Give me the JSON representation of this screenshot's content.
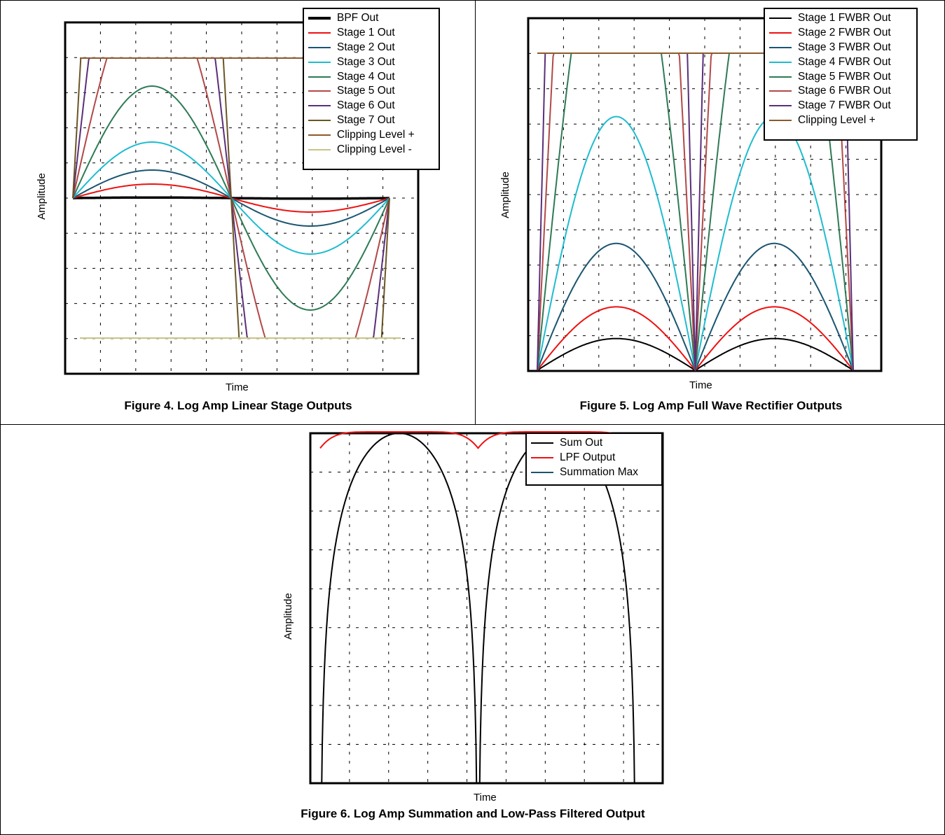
{
  "chart_data": [
    {
      "type": "line",
      "title": "",
      "caption": "Figure 4. Log Amp Linear Stage Outputs",
      "xlabel": "Time",
      "ylabel": "Amplitude",
      "legend_position": "top-right",
      "grid": true,
      "x_divisions": 10,
      "y_divisions": 10,
      "clip_level": 4,
      "series": [
        {
          "name": "BPF Out",
          "color": "#000000",
          "gain": 0.016,
          "width": 3.5
        },
        {
          "name": "Stage 1 Out",
          "color": "#ee1111",
          "gain": 0.4,
          "width": 2
        },
        {
          "name": "Stage 2 Out",
          "color": "#1a5570",
          "gain": 0.8,
          "width": 2
        },
        {
          "name": "Stage 3 Out",
          "color": "#1fbcd0",
          "gain": 1.6,
          "width": 2
        },
        {
          "name": "Stage 4 Out",
          "color": "#2e7a55",
          "gain": 3.2,
          "width": 2
        },
        {
          "name": "Stage 5 Out",
          "color": "#b24848",
          "gain": 6.4,
          "width": 2
        },
        {
          "name": "Stage 6 Out",
          "color": "#5a2f7a",
          "gain": 12.8,
          "width": 2
        },
        {
          "name": "Stage 7 Out",
          "color": "#6b5524",
          "gain": 25.6,
          "width": 2
        },
        {
          "name": "Clipping Level +",
          "color": "#8b5a2b",
          "value": 4,
          "width": 2
        },
        {
          "name": "Clipping Level -",
          "color": "#c8c486",
          "value": -4,
          "width": 2
        }
      ]
    },
    {
      "type": "line",
      "title": "",
      "caption": "Figure 5. Log Amp Full Wave Rectifier Outputs",
      "xlabel": "Time",
      "ylabel": "Amplitude",
      "legend_position": "top-right",
      "grid": true,
      "x_divisions": 10,
      "y_divisions": 10,
      "clip_level": 10,
      "series": [
        {
          "name": "Stage 1 FWBR Out",
          "color": "#000000",
          "gain": 1,
          "width": 2
        },
        {
          "name": "Stage 2 FWBR Out",
          "color": "#ee1111",
          "gain": 2,
          "width": 2
        },
        {
          "name": "Stage 3 FWBR Out",
          "color": "#1a5570",
          "gain": 4,
          "width": 2
        },
        {
          "name": "Stage 4 FWBR Out",
          "color": "#1fbcd0",
          "gain": 8,
          "width": 2
        },
        {
          "name": "Stage 5 FWBR Out",
          "color": "#2e7a55",
          "gain": 16,
          "width": 2
        },
        {
          "name": "Stage 6 FWBR Out",
          "color": "#b24848",
          "gain": 32,
          "width": 2
        },
        {
          "name": "Stage 7 FWBR Out",
          "color": "#5a2f7a",
          "gain": 64,
          "width": 2
        },
        {
          "name": "Clipping Level +",
          "color": "#8b5a2b",
          "value": 10,
          "width": 2
        }
      ]
    },
    {
      "type": "line",
      "title": "",
      "caption": "Figure 6. Log Amp Summation and Low-Pass Filtered Output",
      "xlabel": "Time",
      "ylabel": "Amplitude",
      "legend_position": "top-right",
      "grid": true,
      "x_divisions": 9,
      "y_divisions": 9,
      "series": [
        {
          "name": "Sum Out",
          "color": "#000000",
          "width": 2
        },
        {
          "name": "LPF Output",
          "color": "#ee1111",
          "width": 2
        },
        {
          "name": "Summation Max",
          "color": "#1a5570",
          "width": 2
        }
      ]
    }
  ]
}
